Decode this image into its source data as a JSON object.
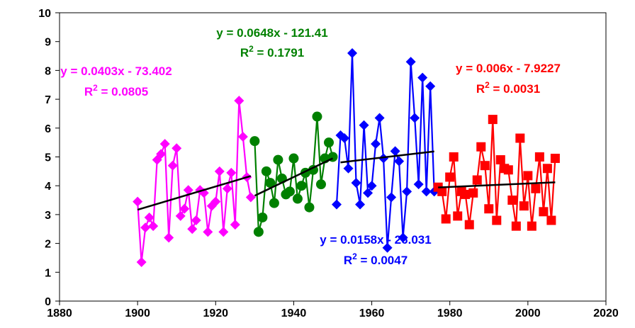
{
  "chart_data": {
    "type": "line",
    "title": "",
    "xlabel": "",
    "ylabel": "",
    "xlim": [
      1880,
      2020
    ],
    "ylim": [
      0,
      10
    ],
    "x_ticks": [
      1880,
      1900,
      1920,
      1940,
      1960,
      1980,
      2000,
      2020
    ],
    "y_ticks": [
      0,
      1,
      2,
      3,
      4,
      5,
      6,
      7,
      8,
      9,
      10
    ],
    "grid": false,
    "legend": "none",
    "series": [
      {
        "marker": "diamond",
        "color": "#FF00FF",
        "x": [
          1900,
          1901,
          1902,
          1903,
          1904,
          1905,
          1906,
          1907,
          1908,
          1909,
          1910,
          1911,
          1912,
          1913,
          1914,
          1915,
          1916,
          1917,
          1918,
          1919,
          1920,
          1921,
          1922,
          1923,
          1924,
          1925,
          1926,
          1927,
          1928,
          1929
        ],
        "y": [
          3.45,
          1.35,
          2.55,
          2.9,
          2.6,
          4.9,
          5.1,
          5.45,
          2.2,
          4.7,
          5.3,
          2.95,
          3.2,
          3.85,
          2.5,
          2.8,
          3.85,
          3.75,
          2.4,
          3.3,
          3.45,
          4.5,
          2.4,
          3.9,
          4.45,
          2.65,
          6.95,
          5.7,
          4.3,
          3.6
        ],
        "trendline": {
          "slope": 0.0403,
          "intercept": -73.402,
          "x_range": [
            1900,
            1929
          ],
          "equation": "y = 0.0403x - 73.402",
          "r2_label": "R",
          "r2_value": "= 0.0805"
        }
      },
      {
        "marker": "circle",
        "color": "#008000",
        "x": [
          1930,
          1931,
          1932,
          1933,
          1934,
          1935,
          1936,
          1937,
          1938,
          1939,
          1940,
          1941,
          1942,
          1943,
          1944,
          1945,
          1946,
          1947,
          1948,
          1949,
          1950
        ],
        "y": [
          5.55,
          2.4,
          2.9,
          4.5,
          4.1,
          3.4,
          4.9,
          4.25,
          3.7,
          3.8,
          4.95,
          3.55,
          4.0,
          4.45,
          3.25,
          4.55,
          6.4,
          4.05,
          4.95,
          5.5,
          5.0
        ],
        "trendline": {
          "slope": 0.0648,
          "intercept": -121.41,
          "x_range": [
            1930,
            1950
          ],
          "equation": "y = 0.0648x - 121.41",
          "r2_label": "R",
          "r2_value": "= 0.1791"
        }
      },
      {
        "marker": "diamond",
        "color": "#0000FF",
        "x": [
          1951,
          1952,
          1953,
          1954,
          1955,
          1956,
          1957,
          1958,
          1959,
          1960,
          1961,
          1962,
          1963,
          1964,
          1965,
          1966,
          1967,
          1968,
          1969,
          1970,
          1971,
          1972,
          1973,
          1974,
          1975,
          1976
        ],
        "y": [
          3.35,
          5.75,
          5.65,
          4.6,
          8.6,
          4.1,
          3.35,
          6.1,
          3.75,
          4.0,
          5.45,
          6.35,
          4.95,
          1.85,
          3.6,
          5.2,
          4.85,
          2.2,
          3.8,
          8.3,
          6.35,
          4.05,
          7.75,
          3.8,
          7.45,
          3.8
        ],
        "trendline": {
          "slope": 0.0158,
          "intercept": -26.031,
          "x_range": [
            1952,
            1976
          ],
          "equation": "y = 0.0158x - 26.031",
          "r2_label": "R",
          "r2_value": "= 0.0047"
        }
      },
      {
        "marker": "square",
        "color": "#FF0000",
        "x": [
          1977,
          1978,
          1979,
          1980,
          1981,
          1982,
          1983,
          1984,
          1985,
          1986,
          1987,
          1988,
          1989,
          1990,
          1991,
          1992,
          1993,
          1994,
          1995,
          1996,
          1997,
          1998,
          1999,
          2000,
          2001,
          2002,
          2003,
          2004,
          2005,
          2006,
          2007
        ],
        "y": [
          3.95,
          3.8,
          2.85,
          4.3,
          5.0,
          2.95,
          3.8,
          3.7,
          2.65,
          3.75,
          4.2,
          5.35,
          4.7,
          3.2,
          6.3,
          2.8,
          4.9,
          4.6,
          4.55,
          3.5,
          2.6,
          5.65,
          3.3,
          4.35,
          2.6,
          3.9,
          5.0,
          3.1,
          4.6,
          2.8,
          4.95
        ],
        "trendline": {
          "slope": 0.006,
          "intercept": -7.9227,
          "x_range": [
            1977,
            2007
          ],
          "equation": "y = 0.006x - 7.9227",
          "r2_label": "R",
          "r2_value": "= 0.0031"
        }
      }
    ]
  }
}
